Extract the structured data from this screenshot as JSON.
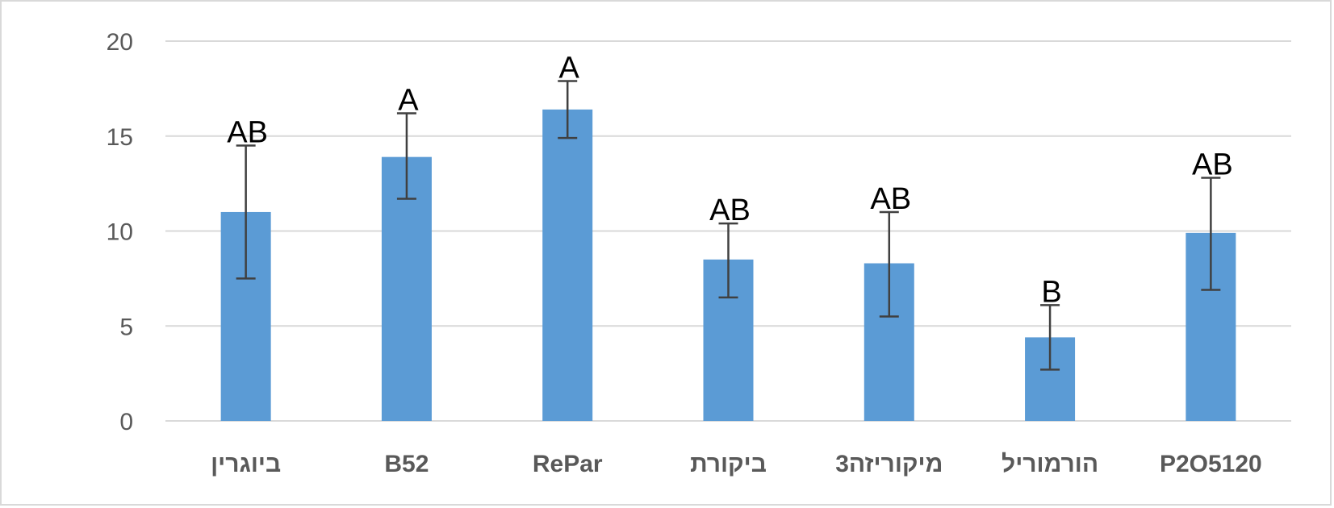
{
  "chart_data": {
    "type": "bar",
    "categories": [
      "ביוגרין",
      "B52",
      "RePar",
      "ביקורת",
      "3מיקוריזה",
      "הורמוריל",
      "P2O5120"
    ],
    "values": [
      11.0,
      13.9,
      16.4,
      8.5,
      8.3,
      4.4,
      9.9
    ],
    "error_low": [
      7.5,
      11.7,
      14.9,
      6.5,
      5.5,
      2.7,
      6.9
    ],
    "error_high": [
      14.5,
      16.2,
      17.9,
      10.4,
      11.0,
      6.1,
      12.8
    ],
    "significance_labels": [
      "AB",
      "A",
      "A",
      "AB",
      "AB",
      "B",
      "AB"
    ],
    "title": "",
    "xlabel": "",
    "ylabel": "",
    "ylim": [
      0,
      20
    ],
    "yticks": [
      0,
      5,
      10,
      15,
      20
    ],
    "grid": true,
    "legend": "none",
    "bar_color": "#5b9bd5",
    "error_color": "#404040",
    "grid_color": "#d9d9d9"
  }
}
